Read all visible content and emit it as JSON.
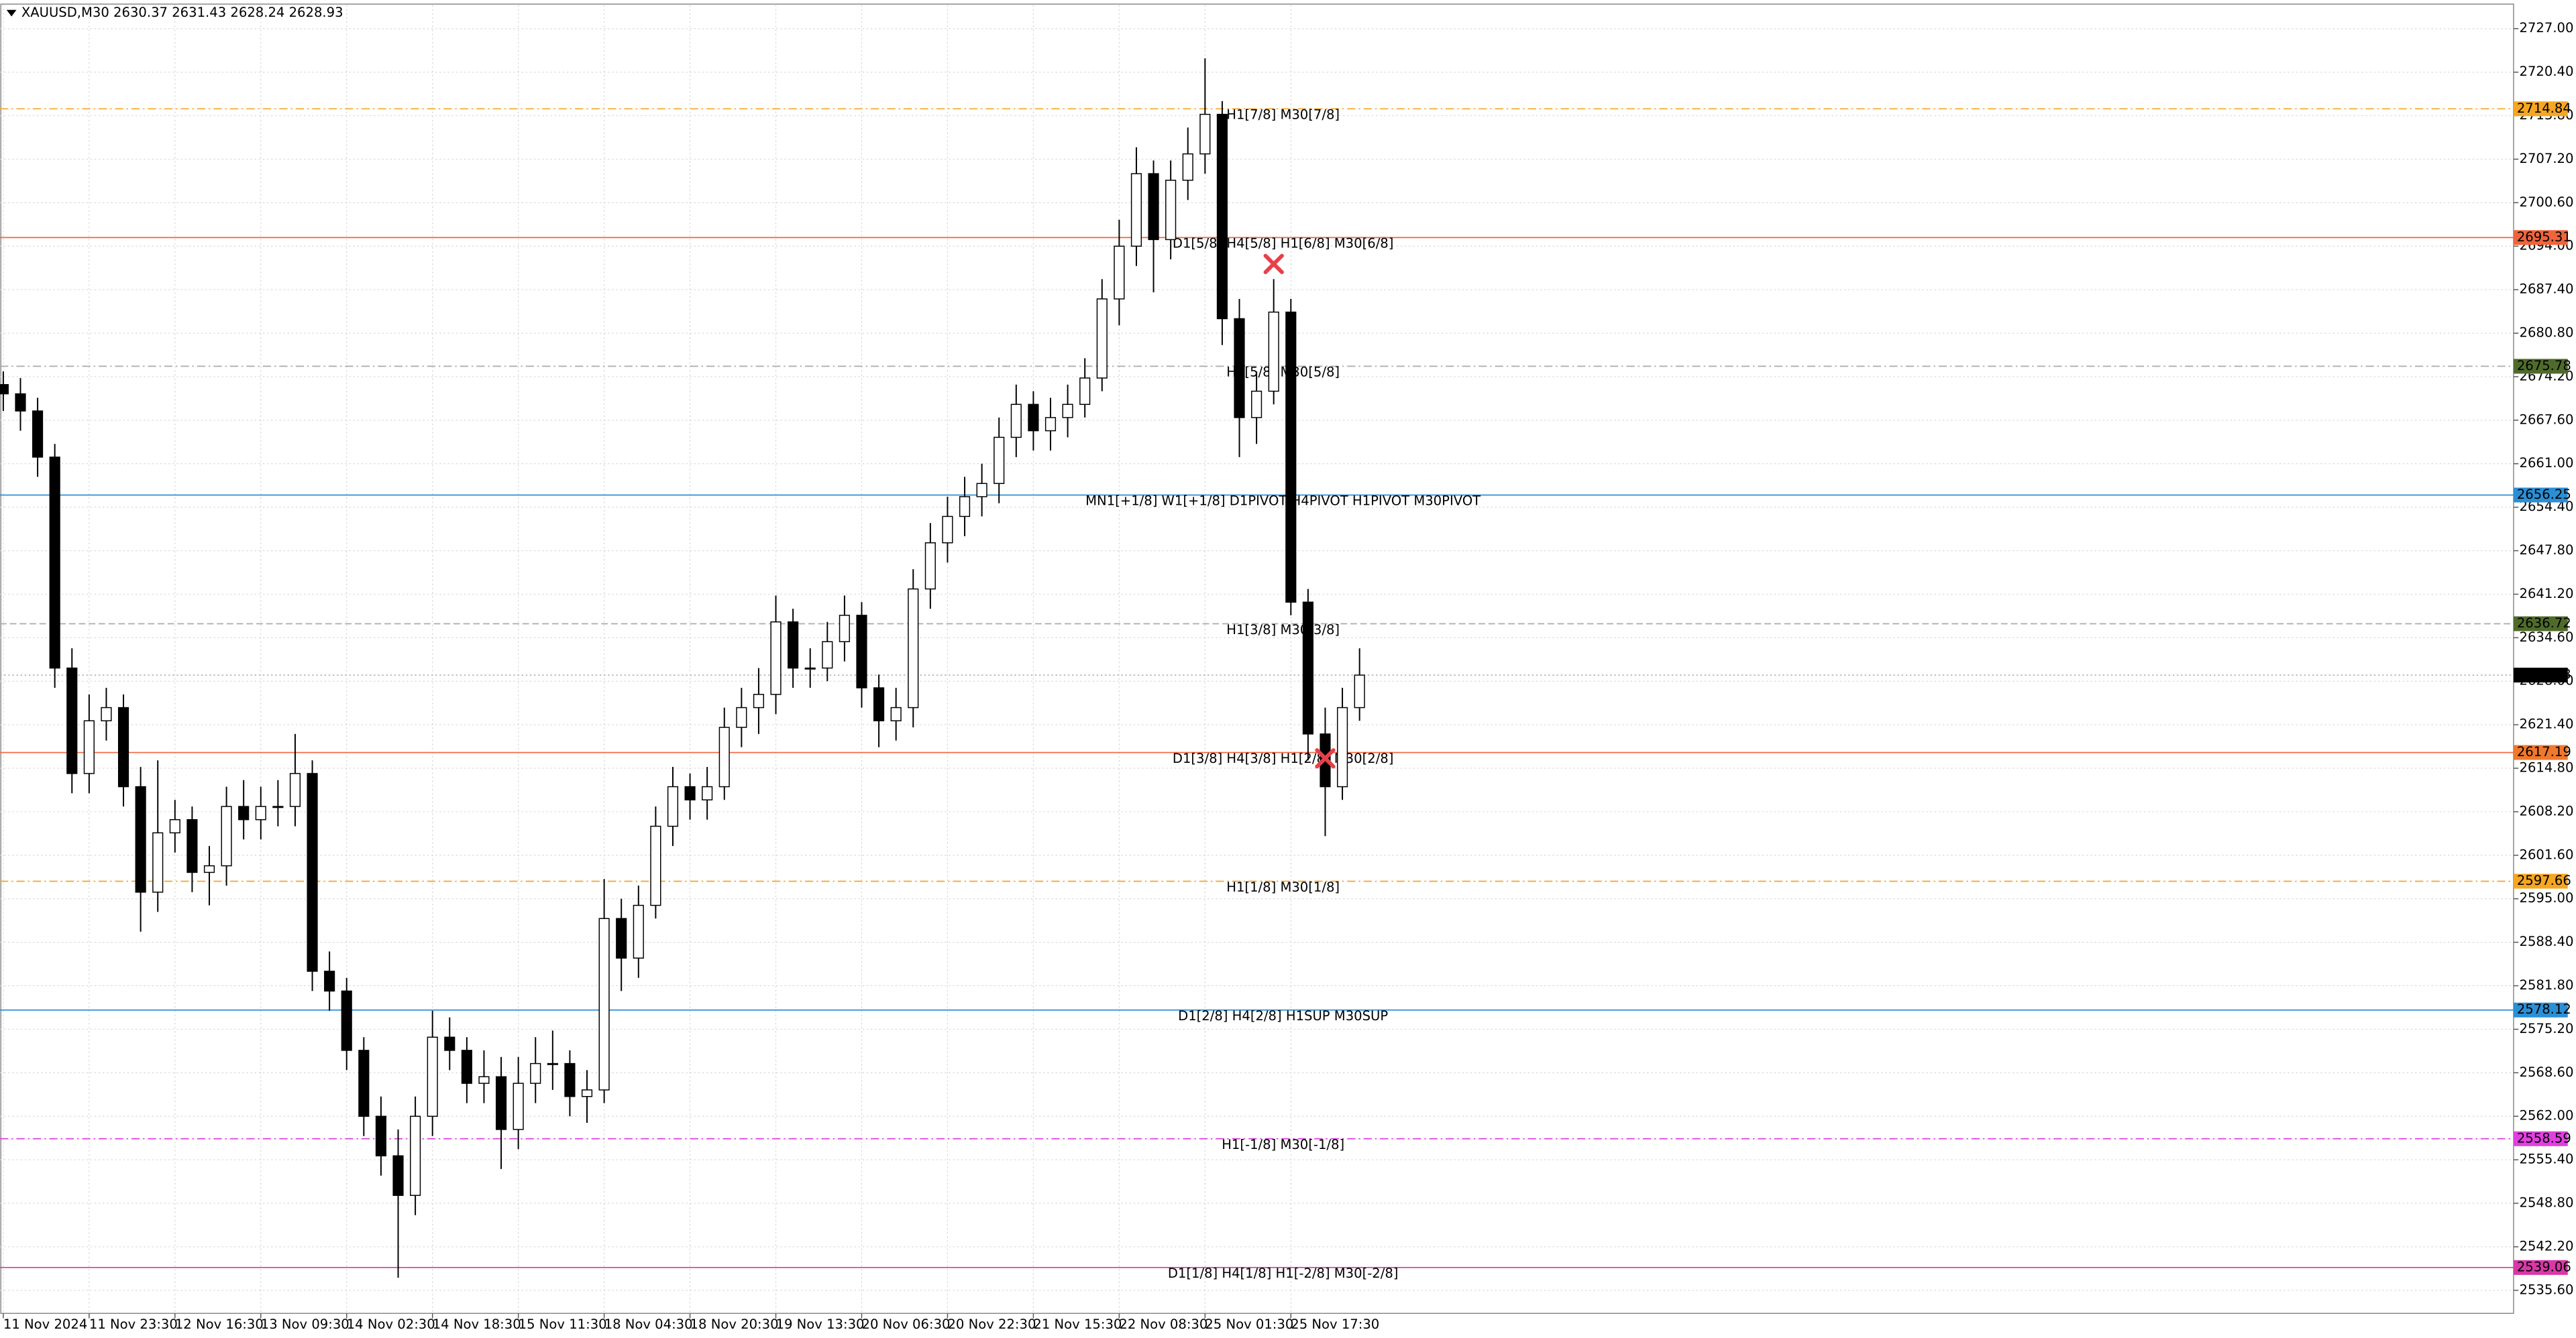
{
  "chart_data": {
    "type": "candlestick",
    "title": "XAUUSD,M30  2630.37 2631.43 2628.24 2628.93",
    "categories": [
      "11 Nov 2024",
      null,
      null,
      null,
      null,
      "11 Nov 23:30",
      null,
      null,
      null,
      null,
      "12 Nov 16:30",
      null,
      null,
      null,
      null,
      "13 Nov 09:30",
      null,
      null,
      null,
      null,
      "14 Nov 02:30",
      null,
      null,
      null,
      null,
      "14 Nov 18:30",
      null,
      null,
      null,
      null,
      "15 Nov 11:30",
      null,
      null,
      null,
      null,
      "18 Nov 04:30",
      null,
      null,
      null,
      null,
      "18 Nov 20:30",
      null,
      null,
      null,
      null,
      "19 Nov 13:30",
      null,
      null,
      null,
      null,
      "20 Nov 06:30",
      null,
      null,
      null,
      null,
      "20 Nov 22:30",
      null,
      null,
      null,
      null,
      "21 Nov 15:30",
      null,
      null,
      null,
      null,
      "22 Nov 08:30",
      null,
      null,
      null,
      null,
      "25 Nov 01:30",
      null,
      null,
      null,
      null,
      "25 Nov 17:30",
      null,
      null,
      null,
      null
    ],
    "open": [
      2673,
      2671.6,
      2669,
      2662,
      2630,
      2614,
      2622,
      2624,
      2612,
      2596,
      2605,
      2607,
      2599,
      2600,
      2609,
      2607,
      2609,
      2609,
      2614,
      2584,
      2581,
      2572,
      2562,
      2556,
      2550,
      2562,
      2574,
      2572,
      2567,
      2568,
      2560,
      2567,
      2570,
      2570,
      2565,
      2566,
      2592,
      2586,
      2594,
      2606,
      2612,
      2610,
      2612,
      2621,
      2624,
      2626,
      2637,
      2630,
      2630,
      2634,
      2638,
      2627,
      2622,
      2624,
      2642,
      2649,
      2653,
      2656,
      2658,
      2665,
      2670,
      2666,
      2668,
      2670,
      2674,
      2686,
      2694,
      2705,
      2695,
      2704,
      2708,
      2714,
      2683,
      2668,
      2672,
      2684,
      2640,
      2620,
      2612,
      2624
    ],
    "high": [
      2675,
      2674,
      2671,
      2664,
      2633,
      2626,
      2627,
      2626,
      2615,
      2616,
      2610,
      2609,
      2603,
      2612,
      2613,
      2612,
      2613,
      2620,
      2616,
      2587,
      2583,
      2574,
      2565,
      2560,
      2565,
      2578,
      2577,
      2574,
      2572,
      2571,
      2571,
      2574,
      2575,
      2572,
      2569,
      2598,
      2595,
      2597,
      2609,
      2615,
      2614,
      2615,
      2624,
      2627,
      2630,
      2641,
      2639,
      2633,
      2637,
      2641,
      2640,
      2629,
      2627,
      2645,
      2652,
      2656,
      2659,
      2661,
      2668,
      2673,
      2672,
      2671,
      2673,
      2677,
      2689,
      2698,
      2709,
      2707,
      2707,
      2712,
      2722.5,
      2716,
      2686,
      2675,
      2689,
      2686,
      2642,
      2624,
      2627,
      2633
    ],
    "low": [
      2669,
      2666,
      2659,
      2627,
      2611,
      2611,
      2619,
      2609,
      2590,
      2593,
      2602,
      2596,
      2594,
      2597,
      2604,
      2604,
      2606,
      2606,
      2581,
      2578,
      2569,
      2559,
      2553,
      2537.5,
      2547,
      2559,
      2569,
      2564,
      2564,
      2554,
      2557,
      2564,
      2566,
      2562,
      2561,
      2564,
      2581,
      2583,
      2592,
      2603,
      2607,
      2607,
      2610,
      2618,
      2620,
      2623,
      2627,
      2627,
      2628,
      2631,
      2624,
      2618,
      2619,
      2621,
      2639,
      2646,
      2650,
      2653,
      2655,
      2662,
      2663,
      2663,
      2665,
      2668,
      2672,
      2682,
      2691,
      2687,
      2692,
      2701,
      2705,
      2679,
      2662,
      2664,
      2670,
      2638,
      2616,
      2604.5,
      2610,
      2622
    ],
    "close": [
      2671.6,
      2669,
      2662,
      2630,
      2614,
      2622,
      2624,
      2612,
      2596,
      2605,
      2607,
      2599,
      2600,
      2609,
      2607,
      2609,
      2609,
      2614,
      2584,
      2581,
      2572,
      2562,
      2556,
      2550,
      2562,
      2574,
      2572,
      2567,
      2568,
      2560,
      2567,
      2570,
      2570,
      2565,
      2566,
      2592,
      2586,
      2594,
      2606,
      2612,
      2610,
      2612,
      2621,
      2624,
      2626,
      2637,
      2630,
      2630,
      2634,
      2638,
      2627,
      2622,
      2624,
      2642,
      2649,
      2653,
      2656,
      2658,
      2665,
      2670,
      2666,
      2668,
      2670,
      2674,
      2686,
      2694,
      2705,
      2695,
      2704,
      2708,
      2714,
      2683,
      2668,
      2672,
      2684,
      2640,
      2620,
      2612,
      2624,
      2628.93
    ],
    "up_color": "#ffffff",
    "down_color": "#000000",
    "outline_color": "#000000",
    "ylim": [
      2532.1,
      2730.6
    ],
    "yticks": [
      {
        "value": 2727,
        "label": "2727.00"
      },
      {
        "value": 2720.4,
        "label": "2720.40"
      },
      {
        "value": 2713.8,
        "label": "2713.80"
      },
      {
        "value": 2707.2,
        "label": "2707.20"
      },
      {
        "value": 2700.6,
        "label": "2700.60"
      },
      {
        "value": 2694,
        "label": "2694.00"
      },
      {
        "value": 2687.4,
        "label": "2687.40"
      },
      {
        "value": 2680.8,
        "label": "2680.80"
      },
      {
        "value": 2674.2,
        "label": "2674.20"
      },
      {
        "value": 2667.6,
        "label": "2667.60"
      },
      {
        "value": 2661,
        "label": "2661.00"
      },
      {
        "value": 2654.4,
        "label": "2654.40"
      },
      {
        "value": 2647.8,
        "label": "2647.80"
      },
      {
        "value": 2641.2,
        "label": "2641.20"
      },
      {
        "value": 2634.6,
        "label": "2634.60"
      },
      {
        "value": 2628,
        "label": "2628.00"
      },
      {
        "value": 2621.4,
        "label": "2621.40"
      },
      {
        "value": 2614.8,
        "label": "2614.80"
      },
      {
        "value": 2608.2,
        "label": "2608.20"
      },
      {
        "value": 2601.6,
        "label": "2601.60"
      },
      {
        "value": 2595,
        "label": "2595.00"
      },
      {
        "value": 2588.4,
        "label": "2588.40"
      },
      {
        "value": 2581.8,
        "label": "2581.80"
      },
      {
        "value": 2575.2,
        "label": "2575.20"
      },
      {
        "value": 2568.6,
        "label": "2568.60"
      },
      {
        "value": 2562,
        "label": "2562.00"
      },
      {
        "value": 2555.4,
        "label": "2555.40"
      },
      {
        "value": 2548.8,
        "label": "2548.80"
      },
      {
        "value": 2542.2,
        "label": "2542.20"
      },
      {
        "value": 2535.6,
        "label": "2535.60"
      }
    ],
    "grid": true,
    "levels": [
      {
        "value": 2714.84,
        "label": "H1[7/8] M30[7/8]",
        "color": "#f5a623",
        "box_color": "#f5a623",
        "line_style": "dashdot"
      },
      {
        "value": 2695.31,
        "label": "D1[5/8] H4[5/8] H1[6/8] M30[6/8]",
        "color": "#f0643c",
        "box_color": "#f0643c",
        "line_style": "solid"
      },
      {
        "value": 2675.78,
        "label": "H1[5/8] M30[5/8]",
        "color": "#4f6b2a",
        "box_color": "#4f6b2a",
        "line_color": "#aaaaaa",
        "line_style": "dashdot"
      },
      {
        "value": 2656.25,
        "label": "MN1[+1/8] W1[+1/8] D1PIVOT H4PIVOT H1PIVOT M30PIVOT",
        "color": "#2b8fd6",
        "box_color": "#2b8fd6",
        "line_style": "solid"
      },
      {
        "value": 2636.72,
        "label": "H1[3/8] M30[3/8]",
        "color": "#4f6b2a",
        "box_color": "#4f6b2a",
        "line_color": "#aaaaaa",
        "line_style": "dashed"
      },
      {
        "value": 2617.19,
        "label": "D1[3/8] H4[3/8] H1[2/8] M30[2/8]",
        "color": "#f0643c",
        "box_color": "#f0782c",
        "line_style": "solid"
      },
      {
        "value": 2597.66,
        "label": "H1[1/8] M30[1/8]",
        "color": "#f5a623",
        "box_color": "#f5a623",
        "line_style": "dashdot"
      },
      {
        "value": 2578.12,
        "label": "D1[2/8] H4[2/8] H1SUP M30SUP",
        "color": "#2b8fd6",
        "box_color": "#2b8fd6",
        "line_style": "solid"
      },
      {
        "value": 2558.59,
        "label": "H1[-1/8] M30[-1/8]",
        "color": "#e040e0",
        "box_color": "#e040e0",
        "line_style": "dashdot"
      },
      {
        "value": 2539.06,
        "label": "D1[1/8] H4[1/8] H1[-2/8] M30[-2/8]",
        "color": "#d838a8",
        "box_color": "#d838a8",
        "line_style": "solid"
      }
    ],
    "current_price": {
      "value": 2628.93,
      "color": "#000000"
    },
    "signals": [
      {
        "candle": 74,
        "price": 2691.3,
        "color": "#e8404a"
      },
      {
        "candle": 77,
        "price": 2616.3,
        "color": "#e8404a"
      }
    ]
  }
}
